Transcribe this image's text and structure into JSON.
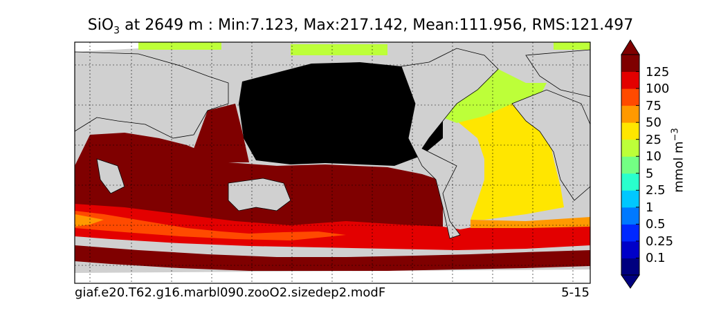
{
  "title": {
    "variable": "SiO",
    "subscript": "3",
    "rest": " at 2649 m : Min:7.123, Max:217.142, Mean:111.956, RMS:121.497"
  },
  "footer": {
    "case_name": "giaf.e20.T62.g16.marbl090.zooO2.sizedep2.modF",
    "years": "5-15"
  },
  "colorbar": {
    "units": "mmol m",
    "units_exponent": "−3",
    "ticks": [
      "0.1",
      "0.25",
      "0.5",
      "1",
      "2.5",
      "5",
      "10",
      "25",
      "50",
      "75",
      "100",
      "125"
    ],
    "colors": [
      "#00007f",
      "#0000c8",
      "#0028ff",
      "#0079ff",
      "#00c8ff",
      "#29ffcd",
      "#73ff84",
      "#bdff39",
      "#ffe600",
      "#ff9900",
      "#ff4a00",
      "#e30000",
      "#7f0000"
    ],
    "extend": "both"
  },
  "chart_data": {
    "type": "heatmap",
    "title": "SiO3 at 2649 m : Min:7.123, Max:217.142, Mean:111.956, RMS:121.497",
    "variable": "SiO3",
    "depth": "2649 m",
    "statistics": {
      "min": 7.123,
      "max": 217.142,
      "mean": 111.956,
      "rms": 121.497
    },
    "units": "mmol m^-3",
    "contour_levels": [
      0.1,
      0.25,
      0.5,
      1,
      2.5,
      5,
      10,
      25,
      50,
      75,
      100,
      125
    ],
    "land_color": "#d0d0d0",
    "no_data_color": "#ffffff",
    "max_value_color": "#000000",
    "grid": true,
    "colorbar_position": "right"
  }
}
